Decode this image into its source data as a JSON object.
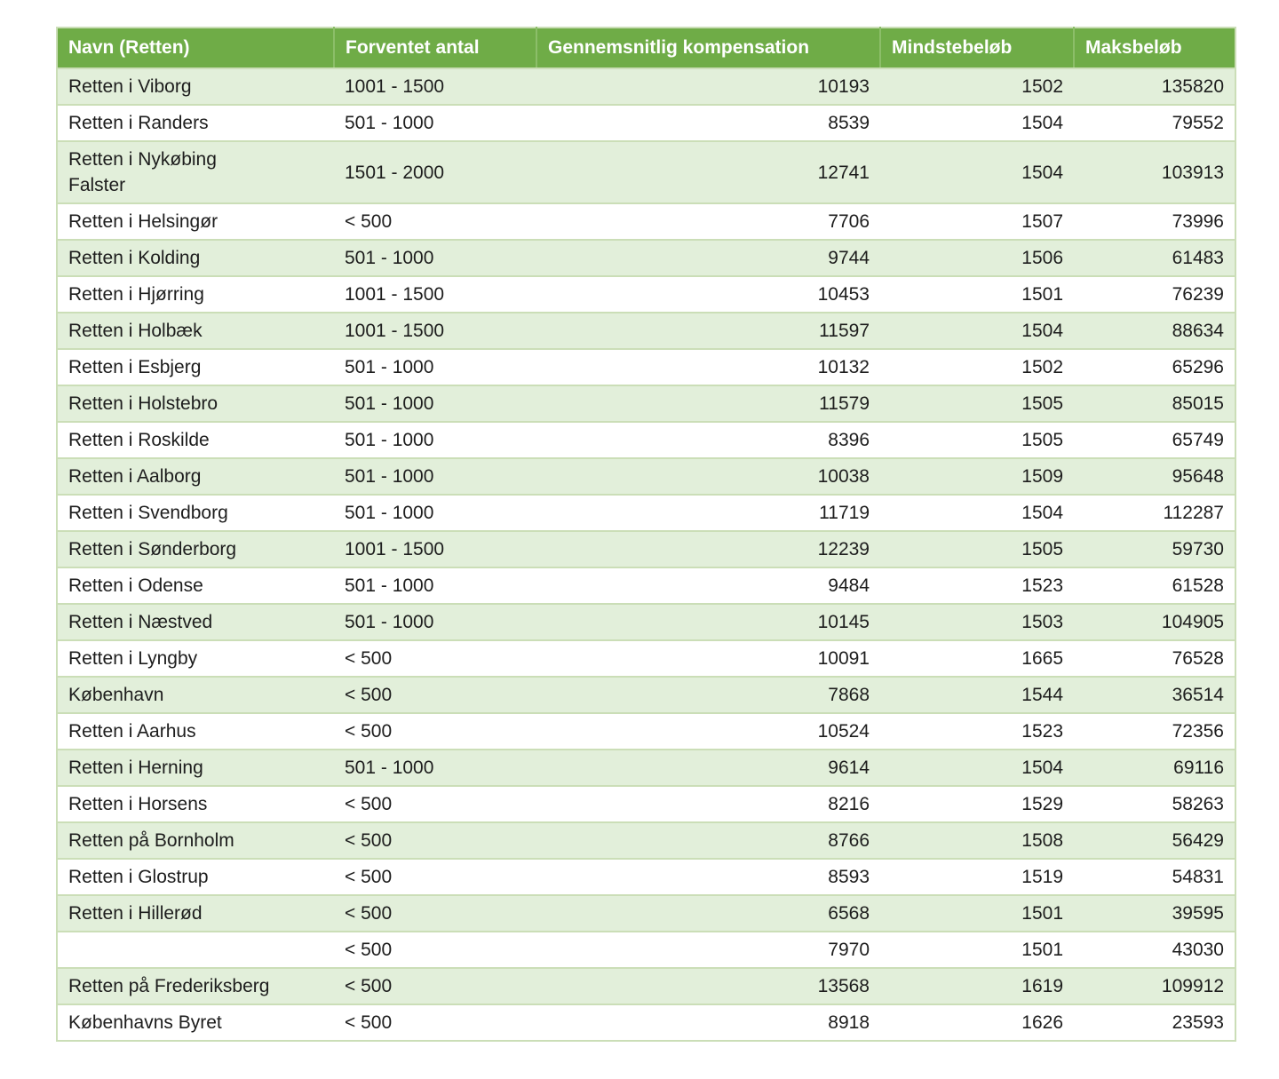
{
  "chart_data": {
    "type": "table",
    "title": "",
    "columns": [
      {
        "key": "navn",
        "label": "Navn (Retten)"
      },
      {
        "key": "forventet_antal",
        "label": "Forventet antal"
      },
      {
        "key": "gennemsnitlig_kompensation",
        "label": "Gennemsnitlig kompensation"
      },
      {
        "key": "mindstebeloeb",
        "label": "Mindstebeløb"
      },
      {
        "key": "maksbeloeb",
        "label": "Maksbeløb"
      }
    ],
    "rows": [
      {
        "navn": "Retten i Viborg",
        "forventet_antal": "1001 - 1500",
        "gennemsnitlig_kompensation": "10193",
        "mindstebeloeb": "1502",
        "maksbeloeb": "135820"
      },
      {
        "navn": "Retten i Randers",
        "forventet_antal": "501 - 1000",
        "gennemsnitlig_kompensation": "8539",
        "mindstebeloeb": "1504",
        "maksbeloeb": "79552"
      },
      {
        "navn": "Retten i Nykøbing\nFalster",
        "forventet_antal": "1501 - 2000",
        "gennemsnitlig_kompensation": "12741",
        "mindstebeloeb": "1504",
        "maksbeloeb": "103913"
      },
      {
        "navn": "Retten i Helsingør",
        "forventet_antal": "< 500",
        "gennemsnitlig_kompensation": "7706",
        "mindstebeloeb": "1507",
        "maksbeloeb": "73996"
      },
      {
        "navn": "Retten i Kolding",
        "forventet_antal": "501 - 1000",
        "gennemsnitlig_kompensation": "9744",
        "mindstebeloeb": "1506",
        "maksbeloeb": "61483"
      },
      {
        "navn": "Retten i Hjørring",
        "forventet_antal": "1001 - 1500",
        "gennemsnitlig_kompensation": "10453",
        "mindstebeloeb": "1501",
        "maksbeloeb": "76239"
      },
      {
        "navn": "Retten i Holbæk",
        "forventet_antal": "1001 - 1500",
        "gennemsnitlig_kompensation": "11597",
        "mindstebeloeb": "1504",
        "maksbeloeb": "88634"
      },
      {
        "navn": "Retten i Esbjerg",
        "forventet_antal": "501 - 1000",
        "gennemsnitlig_kompensation": "10132",
        "mindstebeloeb": "1502",
        "maksbeloeb": "65296"
      },
      {
        "navn": "Retten i Holstebro",
        "forventet_antal": "501 - 1000",
        "gennemsnitlig_kompensation": "11579",
        "mindstebeloeb": "1505",
        "maksbeloeb": "85015"
      },
      {
        "navn": "Retten i Roskilde",
        "forventet_antal": "501 - 1000",
        "gennemsnitlig_kompensation": "8396",
        "mindstebeloeb": "1505",
        "maksbeloeb": "65749"
      },
      {
        "navn": "Retten i Aalborg",
        "forventet_antal": "501 - 1000",
        "gennemsnitlig_kompensation": "10038",
        "mindstebeloeb": "1509",
        "maksbeloeb": "95648"
      },
      {
        "navn": "Retten i Svendborg",
        "forventet_antal": "501 - 1000",
        "gennemsnitlig_kompensation": "11719",
        "mindstebeloeb": "1504",
        "maksbeloeb": "112287"
      },
      {
        "navn": "Retten i Sønderborg",
        "forventet_antal": "1001 - 1500",
        "gennemsnitlig_kompensation": "12239",
        "mindstebeloeb": "1505",
        "maksbeloeb": "59730"
      },
      {
        "navn": "Retten i Odense",
        "forventet_antal": "501 - 1000",
        "gennemsnitlig_kompensation": "9484",
        "mindstebeloeb": "1523",
        "maksbeloeb": "61528"
      },
      {
        "navn": "Retten i Næstved",
        "forventet_antal": "501 - 1000",
        "gennemsnitlig_kompensation": "10145",
        "mindstebeloeb": "1503",
        "maksbeloeb": "104905"
      },
      {
        "navn": "Retten i Lyngby",
        "forventet_antal": "< 500",
        "gennemsnitlig_kompensation": "10091",
        "mindstebeloeb": "1665",
        "maksbeloeb": "76528"
      },
      {
        "navn": "København",
        "forventet_antal": "< 500",
        "gennemsnitlig_kompensation": "7868",
        "mindstebeloeb": "1544",
        "maksbeloeb": "36514"
      },
      {
        "navn": "Retten i Aarhus",
        "forventet_antal": "< 500",
        "gennemsnitlig_kompensation": "10524",
        "mindstebeloeb": "1523",
        "maksbeloeb": "72356"
      },
      {
        "navn": "Retten i Herning",
        "forventet_antal": "501 - 1000",
        "gennemsnitlig_kompensation": "9614",
        "mindstebeloeb": "1504",
        "maksbeloeb": "69116"
      },
      {
        "navn": "Retten i Horsens",
        "forventet_antal": "< 500",
        "gennemsnitlig_kompensation": "8216",
        "mindstebeloeb": "1529",
        "maksbeloeb": "58263"
      },
      {
        "navn": "Retten på Bornholm",
        "forventet_antal": "< 500",
        "gennemsnitlig_kompensation": "8766",
        "mindstebeloeb": "1508",
        "maksbeloeb": "56429"
      },
      {
        "navn": "Retten i Glostrup",
        "forventet_antal": "< 500",
        "gennemsnitlig_kompensation": "8593",
        "mindstebeloeb": "1519",
        "maksbeloeb": "54831"
      },
      {
        "navn": "Retten i Hillerød",
        "forventet_antal": "< 500",
        "gennemsnitlig_kompensation": "6568",
        "mindstebeloeb": "1501",
        "maksbeloeb": "39595"
      },
      {
        "navn": "",
        "forventet_antal": "< 500",
        "gennemsnitlig_kompensation": "7970",
        "mindstebeloeb": "1501",
        "maksbeloeb": "43030"
      },
      {
        "navn": "Retten på Frederiksberg",
        "forventet_antal": "< 500",
        "gennemsnitlig_kompensation": "13568",
        "mindstebeloeb": "1619",
        "maksbeloeb": "109912"
      },
      {
        "navn": "Københavns Byret",
        "forventet_antal": "< 500",
        "gennemsnitlig_kompensation": "8918",
        "mindstebeloeb": "1626",
        "maksbeloeb": "23593"
      }
    ],
    "layout": {
      "banded_rows": true,
      "header_position": "top"
    }
  },
  "colors": {
    "header_bg": "#6FAC47",
    "header_text": "#FFFFFF",
    "band_bg": "#E2EFDA",
    "row_bg": "#FFFFFF",
    "row_border": "#CBDEB7",
    "body_text": "#1D1D1D"
  }
}
